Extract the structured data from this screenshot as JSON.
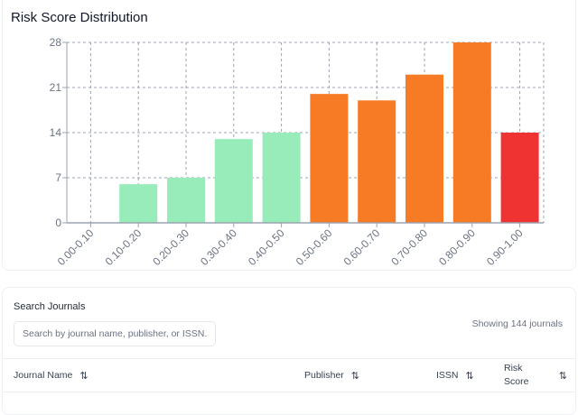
{
  "chart_data": {
    "type": "bar",
    "title": "Risk Score Distribution",
    "categories": [
      "0.00-0.10",
      "0.10-0.20",
      "0.20-0.30",
      "0.30-0.40",
      "0.40-0.50",
      "0.50-0.60",
      "0.60-0.70",
      "0.70-0.80",
      "0.80-0.90",
      "0.90-1.00"
    ],
    "values": [
      0,
      6,
      7,
      13,
      14,
      20,
      19,
      23,
      28,
      14
    ],
    "colors": [
      "#98ecba",
      "#98ecba",
      "#98ecba",
      "#98ecba",
      "#98ecba",
      "#f77a24",
      "#f77a24",
      "#f77a24",
      "#f77a24",
      "#ef3232"
    ],
    "yticks": [
      0,
      7,
      14,
      21,
      28
    ],
    "ylim": [
      0,
      28
    ],
    "grid": true,
    "xlabel": "",
    "ylabel": ""
  },
  "search": {
    "label": "Search Journals",
    "placeholder": "Search by journal name, publisher, or ISSN...",
    "value": "",
    "count_text": "Showing 144 journals"
  },
  "table": {
    "columns": [
      {
        "label": "Journal Name",
        "sort_icon": "sort-icon"
      },
      {
        "label": "Publisher",
        "sort_icon": "sort-icon"
      },
      {
        "label": "ISSN",
        "sort_icon": "sort-icon"
      },
      {
        "label": "Risk Score",
        "sort_icon": "sort-icon"
      }
    ],
    "sort_glyph": "⇅"
  }
}
